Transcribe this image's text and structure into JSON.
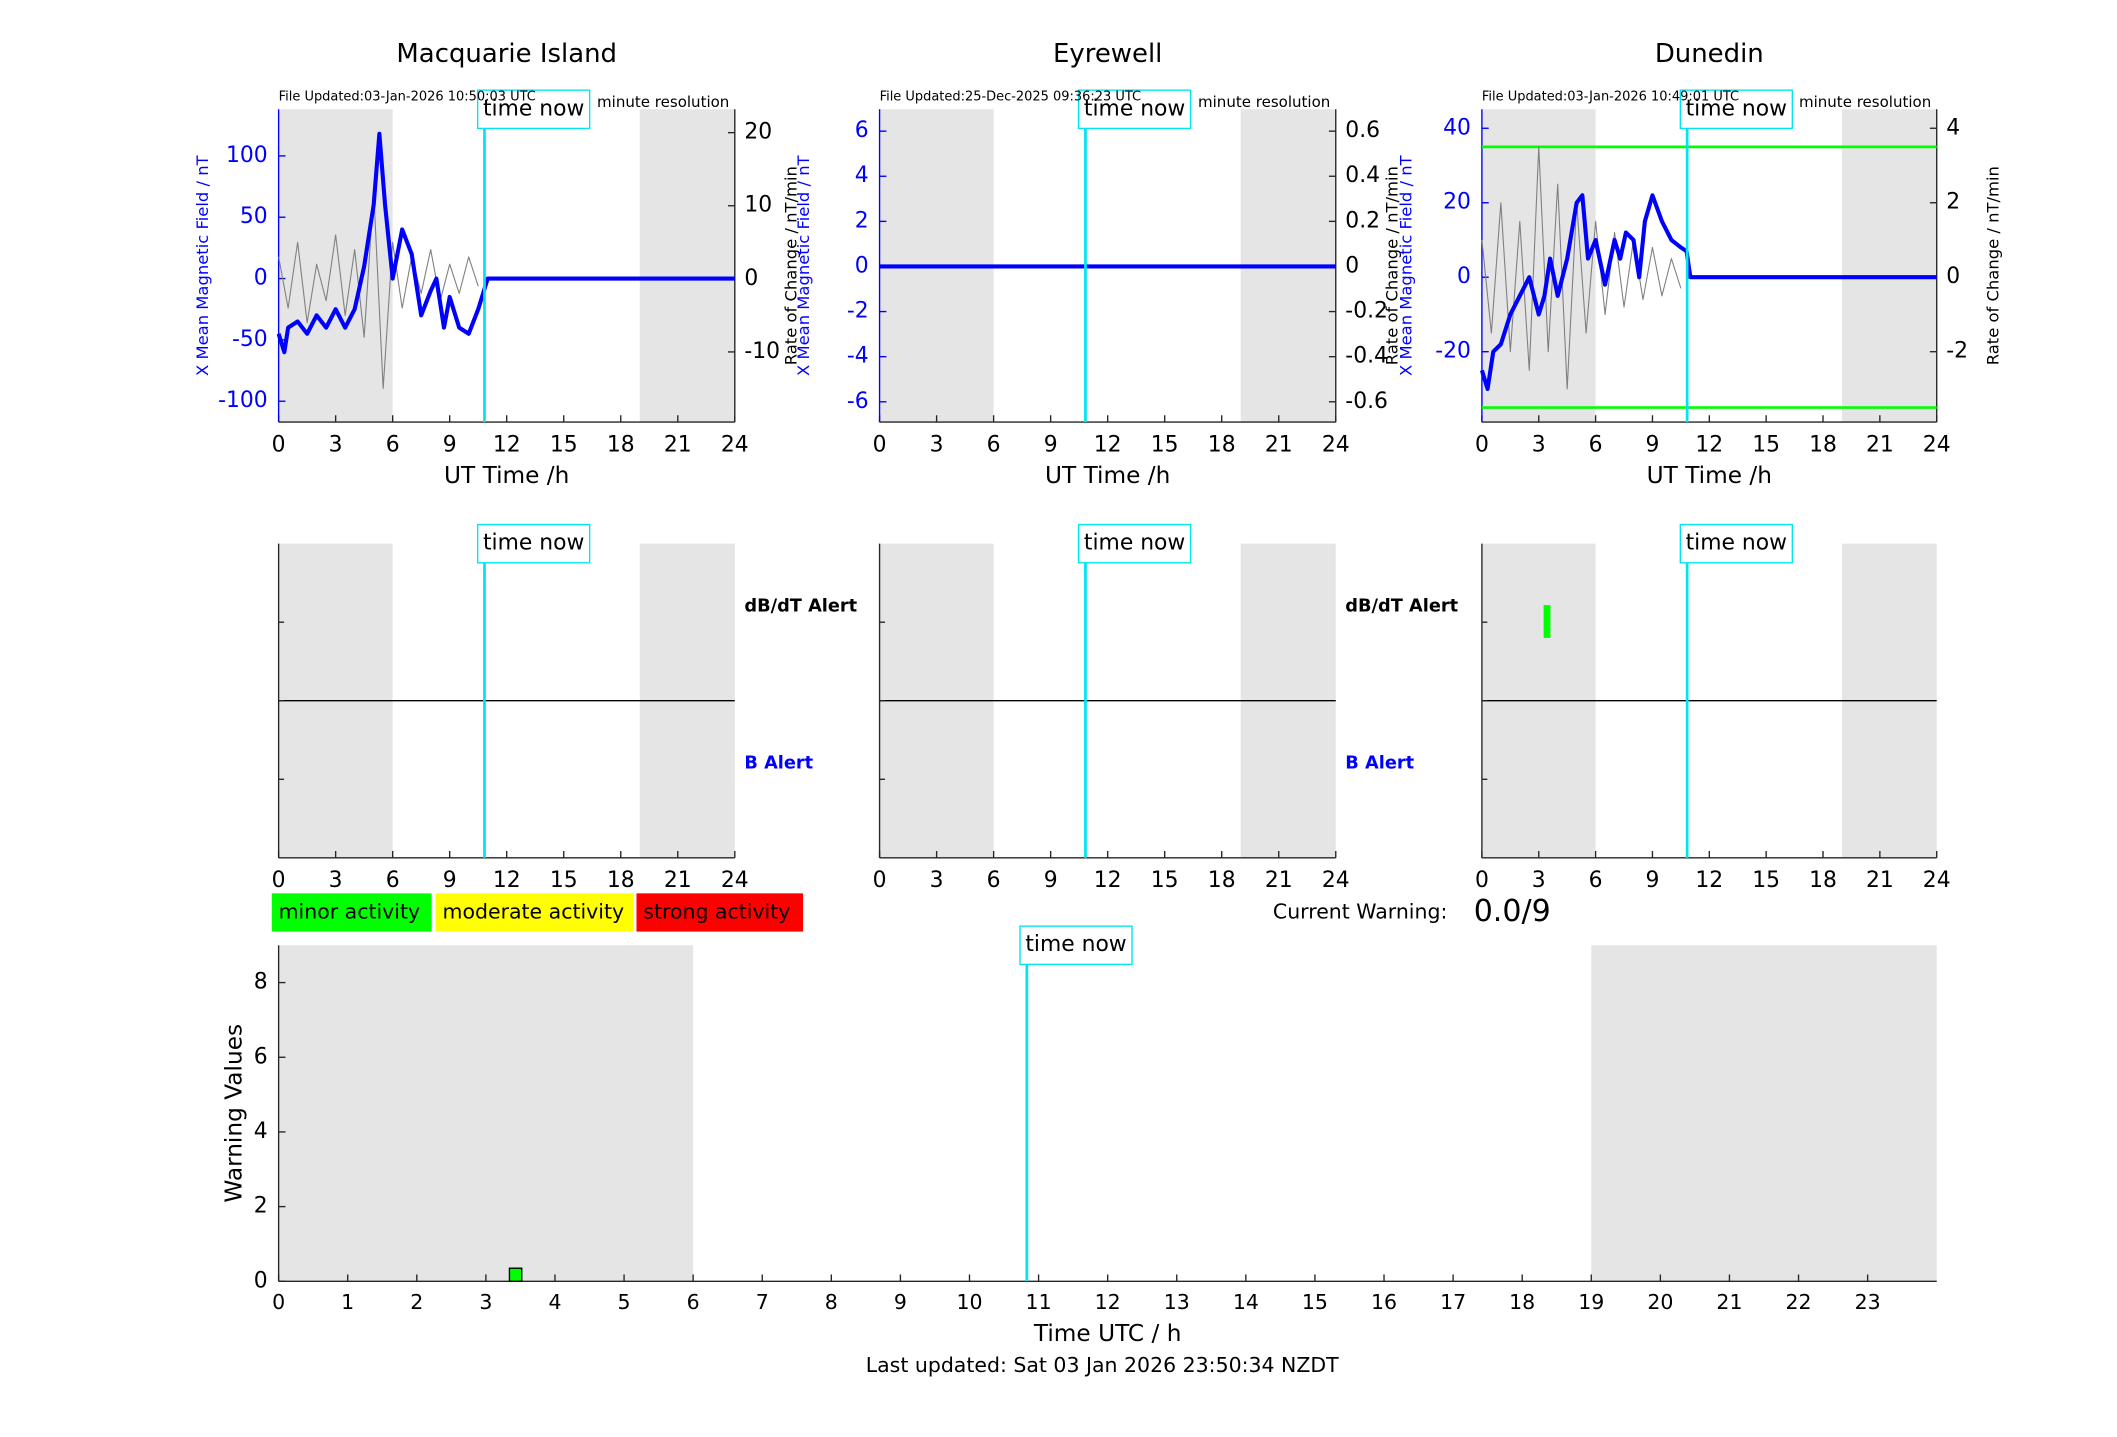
{
  "chart_data": [
    {
      "type": "line",
      "title": "Macquarie Island",
      "subtitle": "File Updated:03-Jan-2026 10:50:03 UTC",
      "note": "minute resolution",
      "xlabel": "UT Time /h",
      "ylabel": "X Mean Magnetic Field / nT",
      "y2label": "Rate of Change / nT/min",
      "xlim": [
        0,
        24
      ],
      "xticks": [
        0,
        3,
        6,
        9,
        12,
        15,
        18,
        21,
        24
      ],
      "ylim": [
        -117,
        138
      ],
      "yticks": [
        -100,
        -50,
        0,
        50,
        100
      ],
      "ycolor": "#0000ff",
      "y2lim": [
        -19.6,
        23.2
      ],
      "y2ticks": [
        -10,
        0,
        10,
        20
      ],
      "shaded": [
        [
          0,
          6
        ],
        [
          19,
          24
        ]
      ],
      "time_now": 10.83,
      "annotation": "time now",
      "series": [
        {
          "color": "#808080",
          "axis": "y2",
          "x": [
            0,
            0.5,
            1,
            1.5,
            2,
            2.5,
            3,
            3.5,
            4,
            4.5,
            5,
            5.5,
            6,
            6.5,
            7,
            7.5,
            8,
            8.5,
            9,
            9.5,
            10,
            10.5
          ],
          "values": [
            3,
            -4,
            5,
            -6,
            2,
            -3,
            6,
            -5,
            4,
            -8,
            12,
            -15,
            5,
            -4,
            3,
            -2,
            4,
            -3,
            2,
            -2,
            3,
            -1
          ]
        },
        {
          "color": "#0000ff",
          "x": [
            0,
            0.3,
            0.5,
            1,
            1.5,
            2,
            2.5,
            3,
            3.5,
            4,
            4.5,
            5,
            5.3,
            5.6,
            6,
            6.5,
            7,
            7.5,
            8,
            8.3,
            8.7,
            9,
            9.5,
            10,
            10.5,
            10.8,
            11,
            24
          ],
          "values": [
            -45,
            -60,
            -40,
            -35,
            -45,
            -30,
            -40,
            -25,
            -40,
            -25,
            10,
            60,
            118,
            60,
            0,
            40,
            20,
            -30,
            -10,
            0,
            -40,
            -15,
            -40,
            -45,
            -25,
            -10,
            0,
            0
          ]
        }
      ]
    },
    {
      "type": "line",
      "title": "Eyrewell",
      "subtitle": "File Updated:25-Dec-2025 09:36:23 UTC",
      "note": "minute resolution",
      "xlabel": "UT Time /h",
      "ylabel": "X Mean Magnetic Field / nT",
      "y2label": "Rate of Change / nT/min",
      "xlim": [
        0,
        24
      ],
      "xticks": [
        0,
        3,
        6,
        9,
        12,
        15,
        18,
        21,
        24
      ],
      "ylim": [
        -6.9,
        6.97
      ],
      "yticks": [
        -6,
        -4,
        -2,
        0,
        2,
        4,
        6
      ],
      "ycolor": "#0000ff",
      "y2lim": [
        -0.69,
        0.697
      ],
      "y2ticks": [
        -0.6,
        -0.4,
        -0.2,
        0,
        0.2,
        0.4,
        0.6
      ],
      "shaded": [
        [
          0,
          6
        ],
        [
          19,
          24
        ]
      ],
      "time_now": 10.83,
      "annotation": "time now",
      "series": [
        {
          "color": "#000000",
          "axis": "y2",
          "x": [
            0,
            24
          ],
          "values": [
            0,
            0
          ]
        },
        {
          "color": "#0000ff",
          "x": [
            0,
            24
          ],
          "values": [
            0,
            0
          ]
        }
      ]
    },
    {
      "type": "line",
      "title": "Dunedin",
      "subtitle": "File Updated:03-Jan-2026 10:49:01 UTC",
      "note": "minute resolution",
      "xlabel": "UT Time /h",
      "ylabel": "X Mean Magnetic Field / nT",
      "y2label": "Rate of Change / nT/min",
      "xlim": [
        0,
        24
      ],
      "xticks": [
        0,
        3,
        6,
        9,
        12,
        15,
        18,
        21,
        24
      ],
      "ylim": [
        -38.9,
        45.1
      ],
      "yticks": [
        -20,
        0,
        20,
        40
      ],
      "ycolor": "#0000ff",
      "y2lim": [
        -3.89,
        4.51
      ],
      "y2ticks": [
        -2,
        0,
        2,
        4
      ],
      "thresholds": [
        35,
        -35
      ],
      "threshold_color": "#00ff00",
      "shaded": [
        [
          0,
          6
        ],
        [
          19,
          24
        ]
      ],
      "time_now": 10.83,
      "annotation": "time now",
      "series": [
        {
          "color": "#808080",
          "axis": "y2",
          "x": [
            0,
            0.5,
            1,
            1.5,
            2,
            2.5,
            3,
            3.5,
            4,
            4.5,
            5,
            5.5,
            6,
            6.5,
            7,
            7.5,
            8,
            8.5,
            9,
            9.5,
            10,
            10.5
          ],
          "values": [
            1,
            -1.5,
            2,
            -2,
            1.5,
            -2.5,
            3.5,
            -2,
            2.5,
            -3,
            2,
            -1.5,
            1.5,
            -1,
            1.2,
            -0.8,
            1,
            -0.6,
            0.8,
            -0.5,
            0.5,
            -0.3
          ]
        },
        {
          "color": "#0000ff",
          "x": [
            0,
            0.3,
            0.6,
            1,
            1.5,
            2,
            2.5,
            3,
            3.3,
            3.6,
            4,
            4.5,
            5,
            5.3,
            5.6,
            6,
            6.5,
            7,
            7.3,
            7.6,
            8,
            8.3,
            8.6,
            9,
            9.5,
            10,
            10.5,
            10.8,
            11,
            24
          ],
          "values": [
            -25,
            -30,
            -20,
            -18,
            -10,
            -5,
            0,
            -10,
            -5,
            5,
            -5,
            5,
            20,
            22,
            5,
            10,
            -2,
            10,
            5,
            12,
            10,
            0,
            15,
            22,
            15,
            10,
            8,
            7,
            0,
            0
          ]
        }
      ]
    },
    {
      "type": "alert",
      "xlim": [
        0,
        24
      ],
      "xticks": [
        0,
        3,
        6,
        9,
        12,
        15,
        18,
        21,
        24
      ],
      "shaded": [
        [
          0,
          6
        ],
        [
          19,
          24
        ]
      ],
      "time_now": 10.83,
      "annotation": "time now",
      "alert_labels": [
        "dB/dT Alert",
        "B Alert"
      ],
      "alert_colors": [
        "#000000",
        "#0000ff"
      ],
      "dbdt_events": []
    },
    {
      "type": "alert",
      "xlim": [
        0,
        24
      ],
      "xticks": [
        0,
        3,
        6,
        9,
        12,
        15,
        18,
        21,
        24
      ],
      "shaded": [
        [
          0,
          6
        ],
        [
          19,
          24
        ]
      ],
      "time_now": 10.83,
      "annotation": "time now",
      "alert_labels": [
        "dB/dT Alert",
        "B Alert"
      ],
      "alert_colors": [
        "#000000",
        "#0000ff"
      ],
      "dbdt_events": []
    },
    {
      "type": "alert",
      "xlim": [
        0,
        24
      ],
      "xticks": [
        0,
        3,
        6,
        9,
        12,
        15,
        18,
        21,
        24
      ],
      "shaded": [
        [
          0,
          6
        ],
        [
          19,
          24
        ]
      ],
      "time_now": 10.83,
      "annotation": "time now",
      "dbdt_events": [
        3.4
      ],
      "event_color": "#00ff00"
    },
    {
      "type": "bar",
      "xlabel": "Time UTC / h",
      "ylabel": "Warning Values",
      "footer": "Last updated: Sat 03 Jan 2026 23:50:34 NZDT",
      "xlim": [
        0,
        24
      ],
      "xticks": [
        0,
        1,
        2,
        3,
        4,
        5,
        6,
        7,
        8,
        9,
        10,
        11,
        12,
        13,
        14,
        15,
        16,
        17,
        18,
        19,
        20,
        21,
        22,
        23
      ],
      "ylim": [
        0,
        9
      ],
      "yticks": [
        0,
        2,
        4,
        6,
        8
      ],
      "shaded": [
        [
          0,
          6
        ],
        [
          19,
          24
        ]
      ],
      "time_now": 10.83,
      "annotation": "time now",
      "x": [
        3.42
      ],
      "values": [
        0.35
      ],
      "color": "#00ff00",
      "levels": [
        {
          "label": "minor activity",
          "color": "#00ff00"
        },
        {
          "label": "moderate activity",
          "color": "#ffff00"
        },
        {
          "label": "strong activity",
          "color": "#ff0000"
        }
      ],
      "current_warning": {
        "label": "Current Warning:",
        "value": "0.0/9"
      }
    }
  ]
}
